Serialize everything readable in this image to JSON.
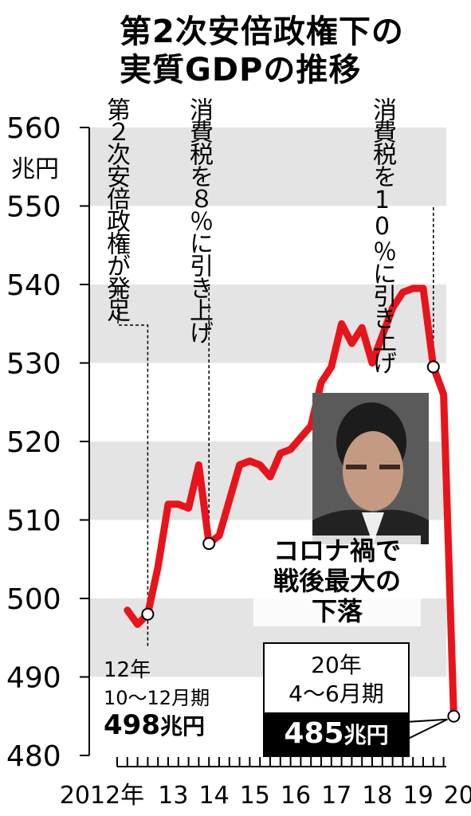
{
  "title": {
    "line1": "第2次安倍政権下の",
    "line2": "実質GDPの推移"
  },
  "annotations": {
    "abe_start": "第２次安倍政権が発足",
    "tax8": "消費税を８％に引き上げ",
    "tax10": "消費税を10％に引き上げ",
    "covid": [
      "コロナ禍で",
      "戦後最大の",
      "下落"
    ],
    "start_period": [
      "12年",
      "10〜12月期"
    ],
    "start_value": "498",
    "start_unit": "兆円",
    "end_period": [
      "20年",
      "4〜6月期"
    ],
    "end_value": "485",
    "end_unit": "兆円"
  },
  "photo_icon": "portrait-photo",
  "colors": {
    "line": "#e8141b",
    "band": "#e4e4e4",
    "text": "#000000"
  },
  "chart_data": {
    "type": "line",
    "ylabel": "兆円",
    "ylim": [
      480,
      560
    ],
    "yticks": [
      480,
      490,
      500,
      510,
      520,
      530,
      540,
      550,
      560
    ],
    "xticks": [
      "2012年",
      "13",
      "14",
      "15",
      "16",
      "17",
      "18",
      "19",
      "20"
    ],
    "grid": "alternating horizontal bands",
    "legend": "none",
    "series": [
      {
        "x": [
          "2012Q2",
          "2012Q3",
          "2012Q4",
          "2013Q1",
          "2013Q2",
          "2013Q3",
          "2013Q4",
          "2014Q1",
          "2014Q2",
          "2014Q3",
          "2014Q4",
          "2015Q1",
          "2015Q2",
          "2015Q3",
          "2015Q4",
          "2016Q1",
          "2016Q2",
          "2016Q3",
          "2016Q4",
          "2017Q1",
          "2017Q2",
          "2017Q3",
          "2017Q4",
          "2018Q1",
          "2018Q2",
          "2018Q3",
          "2018Q4",
          "2019Q1",
          "2019Q2",
          "2019Q3",
          "2019Q4",
          "2020Q1",
          "2020Q2"
        ],
        "values": [
          498.5,
          496.7,
          498.0,
          504.0,
          512.0,
          512.0,
          511.5,
          517.0,
          507.0,
          508.0,
          512.5,
          517.0,
          517.5,
          517.0,
          515.5,
          518.5,
          519.0,
          520.5,
          522.0,
          527.5,
          529.5,
          535.0,
          532.5,
          534.5,
          530.0,
          533.5,
          537.0,
          539.0,
          539.5,
          539.5,
          529.5,
          526.0,
          485.0
        ]
      }
    ],
    "highlighted_points": [
      {
        "x": "2012Q4",
        "y": 498.0
      },
      {
        "x": "2014Q2",
        "y": 507.0
      },
      {
        "x": "2019Q4",
        "y": 529.5
      },
      {
        "x": "2020Q2",
        "y": 485.0
      }
    ]
  }
}
